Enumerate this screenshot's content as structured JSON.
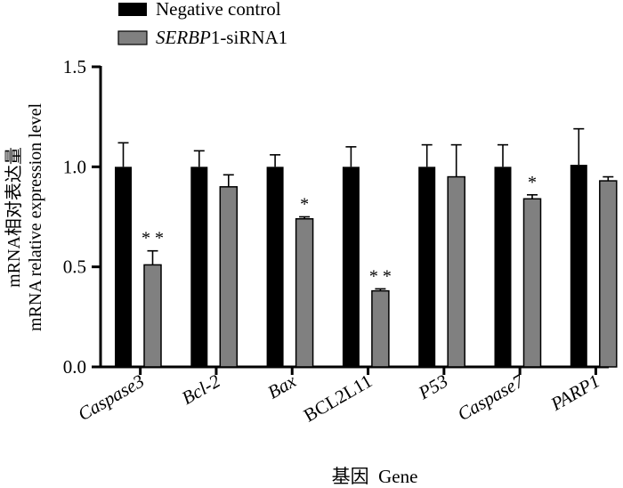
{
  "chart_data": {
    "type": "bar",
    "title": "",
    "categories": [
      "Caspase3",
      "Bcl-2",
      "Bax",
      "BCL2L11",
      "P53",
      "Caspase7",
      "PARP1"
    ],
    "categories_italic": [
      true,
      true,
      true,
      false,
      true,
      true,
      true
    ],
    "series": [
      {
        "name": "Negative control",
        "color": "#000000",
        "values": [
          1.0,
          1.0,
          1.0,
          1.0,
          1.0,
          1.0,
          1.01
        ],
        "errors": [
          0.12,
          0.08,
          0.06,
          0.1,
          0.11,
          0.11,
          0.18
        ]
      },
      {
        "name_italic": "SERBP",
        "name_rest": "1-siRNA1",
        "color": "#808080",
        "values": [
          0.51,
          0.9,
          0.74,
          0.38,
          0.95,
          0.84,
          0.93
        ],
        "errors": [
          0.07,
          0.06,
          0.01,
          0.01,
          0.16,
          0.02,
          0.02
        ],
        "significance": [
          "**",
          "",
          "*",
          "**",
          "",
          "*",
          ""
        ]
      }
    ],
    "ylim": [
      0,
      1.5
    ],
    "yticks": [
      "0.0",
      "0.5",
      "1.0",
      "1.5"
    ],
    "ytick_values": [
      0,
      0.5,
      1.0,
      1.5
    ],
    "ylabel_line1": "mRNA相对表达量",
    "ylabel_line2": "mRNA relative expression level",
    "xlabel": "基因  Gene",
    "legend_position": "top-left"
  }
}
